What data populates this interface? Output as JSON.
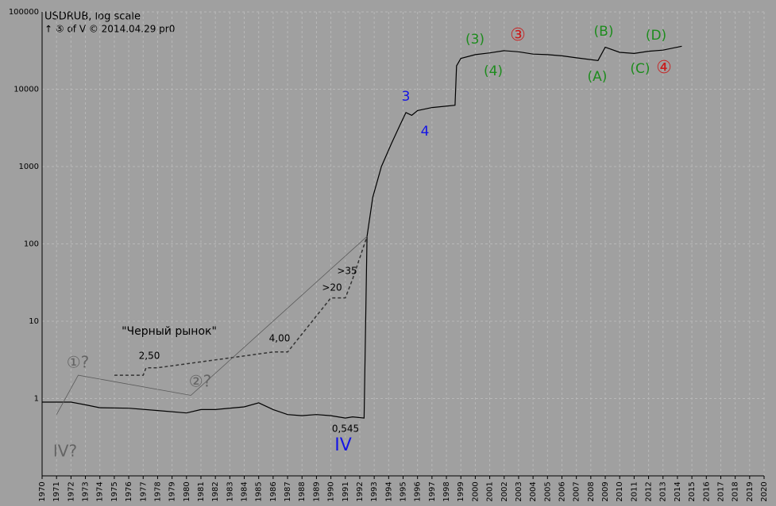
{
  "chart_data": {
    "type": "line",
    "title": "USDRUB, log scale",
    "subtitle": "↑ ⑤ of V  © 2014.04.29 pr0",
    "log_scale": true,
    "grid": true,
    "xlim": [
      1970,
      2020
    ],
    "xticks": [
      1970,
      1971,
      1972,
      1973,
      1974,
      1975,
      1976,
      1977,
      1978,
      1979,
      1980,
      1981,
      1982,
      1983,
      1984,
      1985,
      1986,
      1987,
      1988,
      1989,
      1990,
      1991,
      1992,
      1993,
      1994,
      1995,
      1996,
      1997,
      1998,
      1999,
      2000,
      2001,
      2002,
      2003,
      2004,
      2005,
      2006,
      2007,
      2008,
      2009,
      2010,
      2011,
      2012,
      2013,
      2014,
      2015,
      2016,
      2017,
      2018,
      2019,
      2020
    ],
    "ylim": [
      0.1,
      100000
    ],
    "yticks": [
      1,
      10,
      100,
      1000,
      10000,
      100000
    ],
    "series": [
      {
        "color": "#000000",
        "width": 1.2,
        "dashed": false,
        "x": [
          1970,
          1972,
          1973,
          1974,
          1976,
          1978,
          1980,
          1981,
          1982,
          1984,
          1985,
          1986,
          1987,
          1988,
          1989,
          1990,
          1991,
          1991.5,
          1992.3,
          1992.5,
          1992.9,
          1993.5,
          1994.2,
          1994.8,
          1995.2,
          1995.6,
          1996,
          1997,
          1998.6,
          1998.7,
          1999,
          2000,
          2001,
          2002,
          2003,
          2004,
          2005,
          2006,
          2007,
          2008.5,
          2009,
          2010,
          2011,
          2012,
          2013,
          2014.3
        ],
        "values": [
          0.9,
          0.9,
          0.83,
          0.76,
          0.75,
          0.7,
          0.65,
          0.72,
          0.72,
          0.78,
          0.88,
          0.72,
          0.62,
          0.6,
          0.62,
          0.6,
          0.56,
          0.58,
          0.56,
          125,
          400,
          1000,
          2000,
          3500,
          5000,
          4600,
          5300,
          5800,
          6200,
          20000,
          25000,
          28000,
          29500,
          31500,
          30500,
          28500,
          28000,
          27000,
          25500,
          23500,
          35000,
          30000,
          29000,
          31000,
          32000,
          36000
        ]
      },
      {
        "color": "#333333",
        "width": 1.5,
        "dashed": true,
        "x": [
          1975,
          1977,
          1977.2,
          1978,
          1986,
          1987,
          1990,
          1991,
          1991.5,
          1992.5
        ],
        "values": [
          2,
          2,
          2.5,
          2.5,
          4,
          4,
          20,
          20,
          35,
          125
        ]
      },
      {
        "color": "#5a5a5a",
        "width": 0.8,
        "dashed": false,
        "x": [
          1971,
          1972.5,
          1980.3,
          1992.5
        ],
        "values": [
          0.62,
          2,
          1.1,
          125
        ]
      }
    ],
    "annotations": [
      {
        "text": "(3)",
        "color": "#1e8c1e"
      },
      {
        "text": "③",
        "color": "#c81e1e"
      },
      {
        "text": "(B)",
        "color": "#1e8c1e"
      },
      {
        "text": "(D)",
        "color": "#1e8c1e"
      },
      {
        "text": "(4)",
        "color": "#1e8c1e"
      },
      {
        "text": "(A)",
        "color": "#1e8c1e"
      },
      {
        "text": "(C)",
        "color": "#1e8c1e"
      },
      {
        "text": "④",
        "color": "#c81e1e"
      },
      {
        "text": "3",
        "color": "#1414e6"
      },
      {
        "text": "4",
        "color": "#1414e6"
      },
      {
        "text": "\"Черный рынок\"",
        "color": "#000000"
      },
      {
        "text": "2,50",
        "color": "#000000"
      },
      {
        "text": "4,00",
        "color": "#000000"
      },
      {
        "text": ">20",
        "color": "#000000"
      },
      {
        "text": ">35",
        "color": "#000000"
      },
      {
        "text": "①?",
        "color": "#646464"
      },
      {
        "text": "②?",
        "color": "#646464"
      },
      {
        "text": "0,545",
        "color": "#000000"
      },
      {
        "text": "IV",
        "color": "#1414e6"
      },
      {
        "text": "IV?",
        "color": "#646464"
      }
    ]
  }
}
